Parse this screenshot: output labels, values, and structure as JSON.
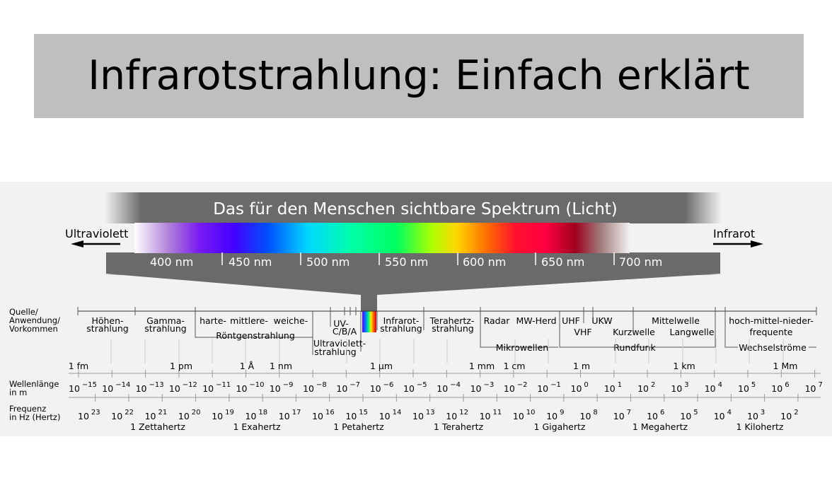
{
  "title": "Infrarotstrahlung: Einfach erklärt",
  "spectrum": {
    "banner": "Das für den Menschen sichtbare Spektrum (Licht)",
    "ultraviolett": "Ultraviolett",
    "infrarot": "Infrarot",
    "nm": [
      "400 nm",
      "450 nm",
      "500 nm",
      "550 nm",
      "600 nm",
      "650 nm",
      "700 nm"
    ]
  },
  "rows": {
    "quelle": [
      "Quelle/",
      "Anwendung/",
      "Vorkommen"
    ],
    "wellen": [
      "Wellenlänge",
      "in m"
    ],
    "freq": [
      "Frequenz",
      "in Hz (Hertz)"
    ]
  },
  "bands": {
    "hoehen": [
      "Höhen-",
      "strahlung"
    ],
    "gamma": [
      "Gamma-",
      "strahlung"
    ],
    "roentgen_types": [
      "harte-",
      "mittlere-",
      "weiche-"
    ],
    "roentgen": "Röntgenstrahlung",
    "uv": [
      "UV-",
      "C/B/A"
    ],
    "ultraviolett": [
      "Ultraviolett-",
      "strahlung"
    ],
    "infrarot": [
      "Infrarot-",
      "strahlung"
    ],
    "terahertz": [
      "Terahertz-",
      "strahlung"
    ],
    "radar": "Radar",
    "mwherd": "MW-Herd",
    "mikrowellen": "Mikrowellen",
    "uhf": "UHF",
    "vhf": "VHF",
    "ukw": "UKW",
    "kurzwelle": "Kurzwelle",
    "mittelwelle": "Mittelwelle",
    "langwelle": "Langwelle",
    "rundfunk": "Rundfunk",
    "nieder": [
      "hoch-mittel-nieder-",
      "frequente"
    ],
    "wechsel": "Wechselströme"
  },
  "length_units": [
    "1 fm",
    "1 pm",
    "1 Å",
    "1 nm",
    "1 µm",
    "1 mm",
    "1 cm",
    "1 m",
    "1 km",
    "1 Mm"
  ],
  "wavelength_exponents": [
    "−15",
    "−14",
    "−13",
    "−12",
    "−11",
    "−10",
    "−9",
    "−8",
    "−7",
    "−6",
    "−5",
    "−4",
    "−3",
    "−2",
    "−1",
    "0",
    "1",
    "2",
    "3",
    "4",
    "5",
    "6",
    "7"
  ],
  "frequency_exponents": [
    "23",
    "22",
    "21",
    "20",
    "19",
    "18",
    "17",
    "16",
    "15",
    "14",
    "13",
    "12",
    "11",
    "10",
    "9",
    "8",
    "7",
    "6",
    "5",
    "4",
    "3",
    "2"
  ],
  "frequency_units": [
    "1 Zettahertz",
    "1 Exahertz",
    "1 Petahertz",
    "1 Terahertz",
    "1 Gigahertz",
    "1 Megahertz",
    "1 Kilohertz"
  ],
  "colors": {
    "banner": "#6a6a6a",
    "panel": "#f2f2f2",
    "title_box": "#bfbfbf"
  }
}
